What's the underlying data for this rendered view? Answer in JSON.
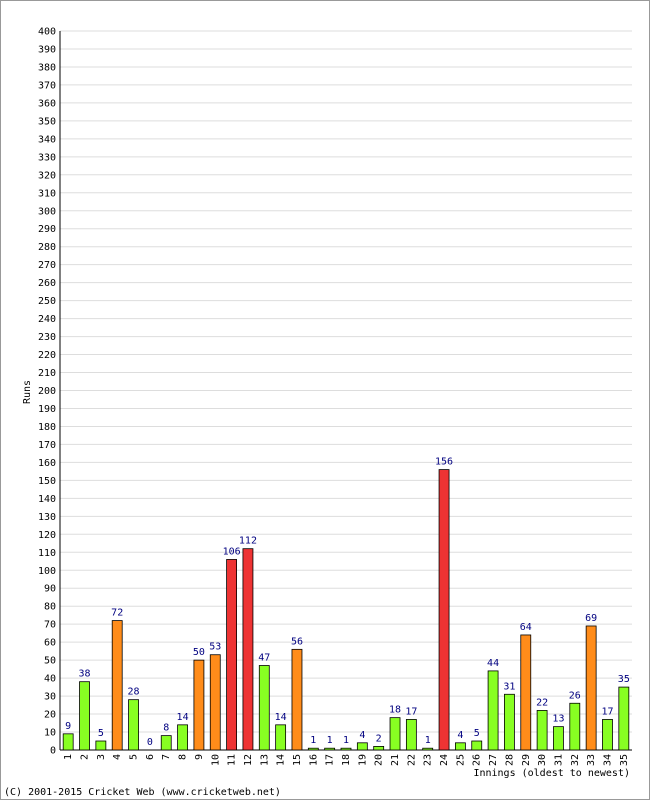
{
  "chart_data": {
    "type": "bar",
    "y_label": "Runs",
    "x_label": "Innings (oldest to newest)",
    "footer": "(C) 2001-2015 Cricket Web (www.cricketweb.net)",
    "categories": [
      "1",
      "2",
      "3",
      "4",
      "5",
      "6",
      "7",
      "8",
      "9",
      "10",
      "11",
      "12",
      "13",
      "14",
      "15",
      "16",
      "17",
      "18",
      "19",
      "20",
      "21",
      "22",
      "23",
      "24",
      "25",
      "26",
      "27",
      "28",
      "29",
      "30",
      "31",
      "32",
      "33",
      "34",
      "35"
    ],
    "values": [
      9,
      38,
      5,
      72,
      28,
      0,
      8,
      14,
      50,
      53,
      106,
      112,
      47,
      14,
      56,
      1,
      1,
      1,
      4,
      2,
      18,
      17,
      1,
      156,
      4,
      5,
      44,
      31,
      64,
      22,
      13,
      26,
      69,
      17,
      35
    ],
    "colors": [
      "#88ff22",
      "#88ff22",
      "#88ff22",
      "#ff8c1a",
      "#88ff22",
      "#88ff22",
      "#88ff22",
      "#88ff22",
      "#ff8c1a",
      "#ff8c1a",
      "#ee3333",
      "#ee3333",
      "#88ff22",
      "#88ff22",
      "#ff8c1a",
      "#88ff22",
      "#88ff22",
      "#88ff22",
      "#88ff22",
      "#88ff22",
      "#88ff22",
      "#88ff22",
      "#88ff22",
      "#ee3333",
      "#88ff22",
      "#88ff22",
      "#88ff22",
      "#88ff22",
      "#ff8c1a",
      "#88ff22",
      "#88ff22",
      "#88ff22",
      "#ff8c1a",
      "#88ff22",
      "#88ff22"
    ],
    "ylim": [
      0,
      400
    ],
    "yticks": [
      0,
      10,
      20,
      30,
      40,
      50,
      60,
      70,
      80,
      90,
      100,
      110,
      120,
      130,
      140,
      150,
      160,
      170,
      180,
      190,
      200,
      210,
      220,
      230,
      240,
      250,
      260,
      270,
      280,
      290,
      300,
      310,
      320,
      330,
      340,
      350,
      360,
      370,
      380,
      390,
      400
    ],
    "grid": true
  }
}
